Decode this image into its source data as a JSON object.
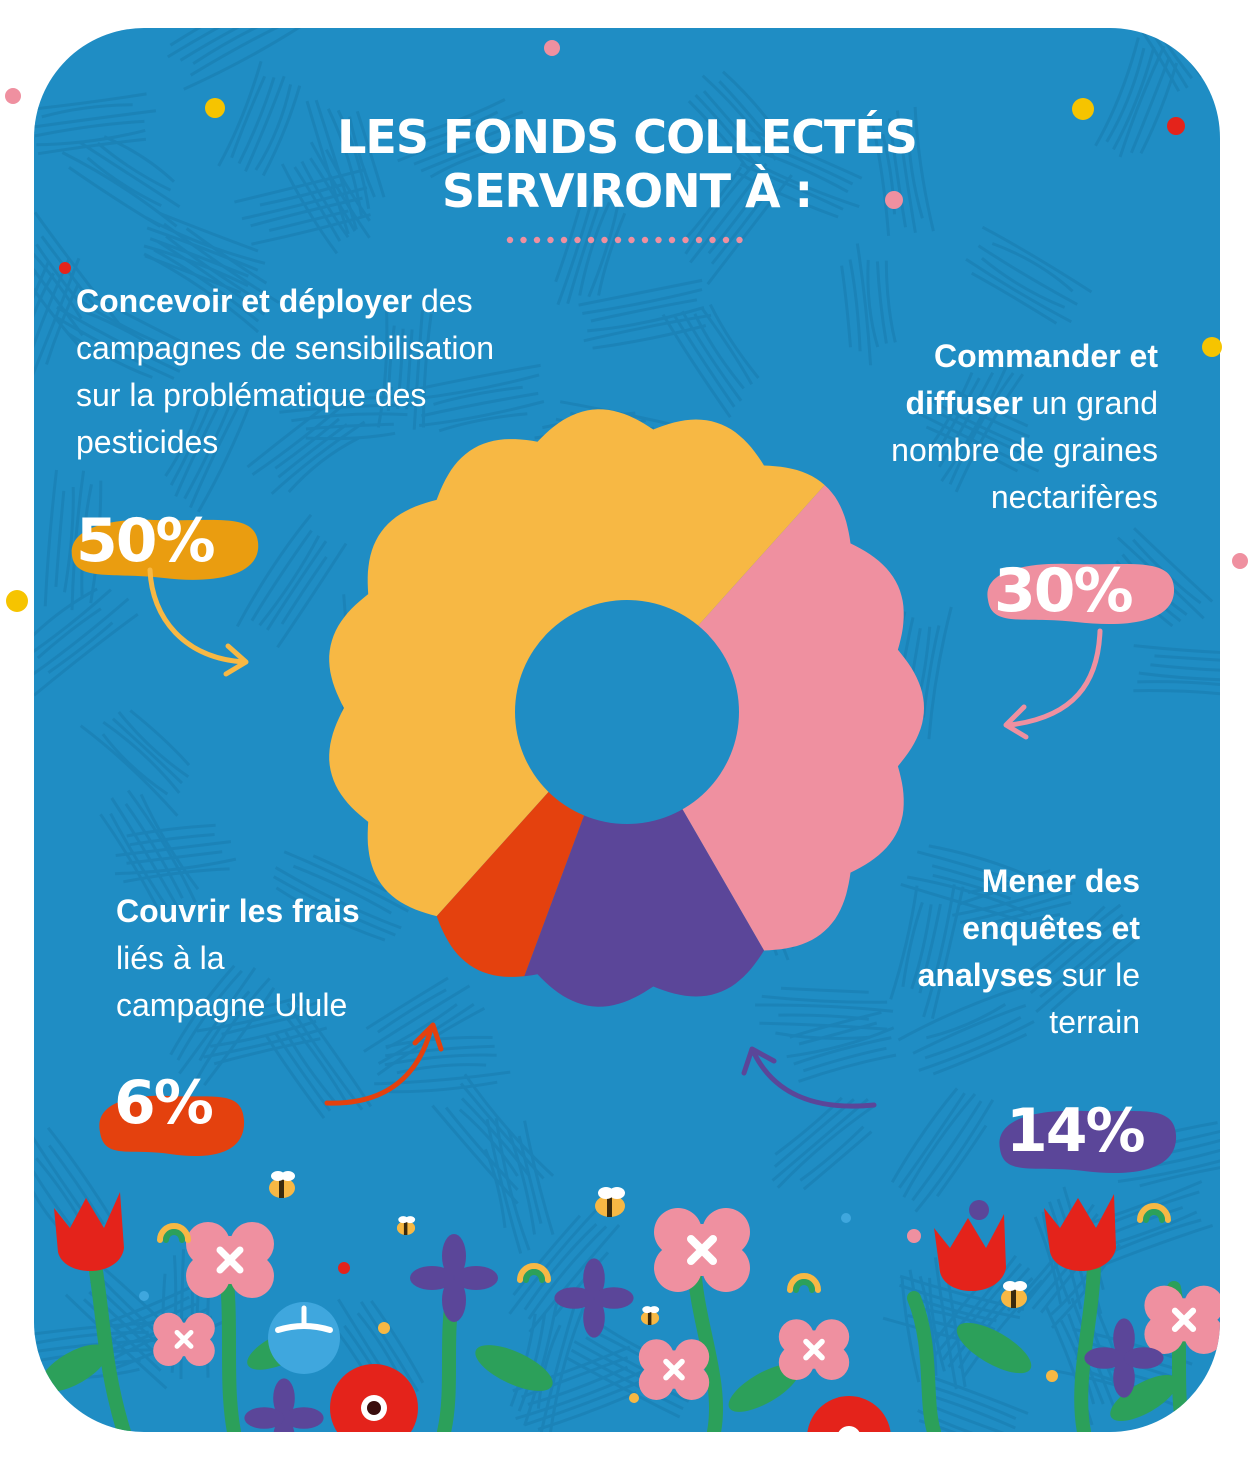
{
  "title": {
    "line1": "LES FONDS COLLECTÉS",
    "line2": "SERVIRONT À :"
  },
  "colors": {
    "background": "#1f8dc4",
    "concevoir": "#f7b844",
    "concevoir_badge": "#ea9d10",
    "commander": "#ef90a0",
    "mener": "#5b4699",
    "couvrir": "#e4410e",
    "center": "#1f8dc4"
  },
  "chart_data": {
    "type": "pie",
    "title": "LES FONDS COLLECTÉS SERVIRONT À :",
    "categories": [
      "Concevoir et déployer",
      "Commander et diffuser",
      "Mener des enquêtes et analyses",
      "Couvrir les frais"
    ],
    "values": [
      50,
      30,
      14,
      6
    ],
    "unit": "%",
    "labels": {
      "concevoir": {
        "bold": "Concevoir et déployer",
        "text": " des campagnes de sensibilisation sur la problématique des pesticides",
        "pct": "50%"
      },
      "commander": {
        "bold": "Commander et diffuser",
        "text": " un grand nombre de graines nectarifères",
        "pct": "30%"
      },
      "mener": {
        "bold": "Mener des enquêtes et analyses",
        "text": " sur le terrain",
        "pct": "14%"
      },
      "couvrir": {
        "bold": "Couvrir les frais",
        "text": " liés à la campagne Ulule",
        "pct": "6%"
      }
    }
  },
  "decor": {
    "flowers": [
      "tulip-red",
      "blossom-pink",
      "violet-purple",
      "poppy-red",
      "bee-icon",
      "rainbow-icon"
    ]
  }
}
